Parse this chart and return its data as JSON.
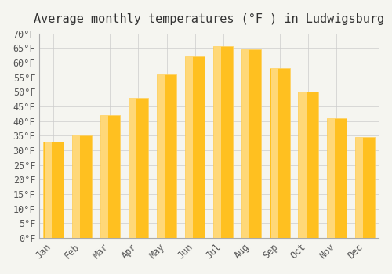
{
  "months": [
    "Jan",
    "Feb",
    "Mar",
    "Apr",
    "May",
    "Jun",
    "Jul",
    "Aug",
    "Sep",
    "Oct",
    "Nov",
    "Dec"
  ],
  "values": [
    33,
    35,
    42,
    48,
    56,
    62,
    65.5,
    64.5,
    58,
    50,
    41,
    34.5
  ],
  "bar_color_face": "#FFC020",
  "bar_color_edge": "#FFD060",
  "bar_gradient_light": "#FFD878",
  "title": "Average monthly temperatures (°F ) in Ludwigsburg",
  "ylim": [
    0,
    70
  ],
  "yticks": [
    0,
    5,
    10,
    15,
    20,
    25,
    30,
    35,
    40,
    45,
    50,
    55,
    60,
    65,
    70
  ],
  "ytick_labels": [
    "0°F",
    "5°F",
    "10°F",
    "15°F",
    "20°F",
    "25°F",
    "30°F",
    "35°F",
    "40°F",
    "45°F",
    "50°F",
    "55°F",
    "60°F",
    "65°F",
    "70°F"
  ],
  "background_color": "#F5F5F0",
  "grid_color": "#CCCCCC",
  "title_fontsize": 11,
  "tick_fontsize": 8.5,
  "font_family": "monospace"
}
